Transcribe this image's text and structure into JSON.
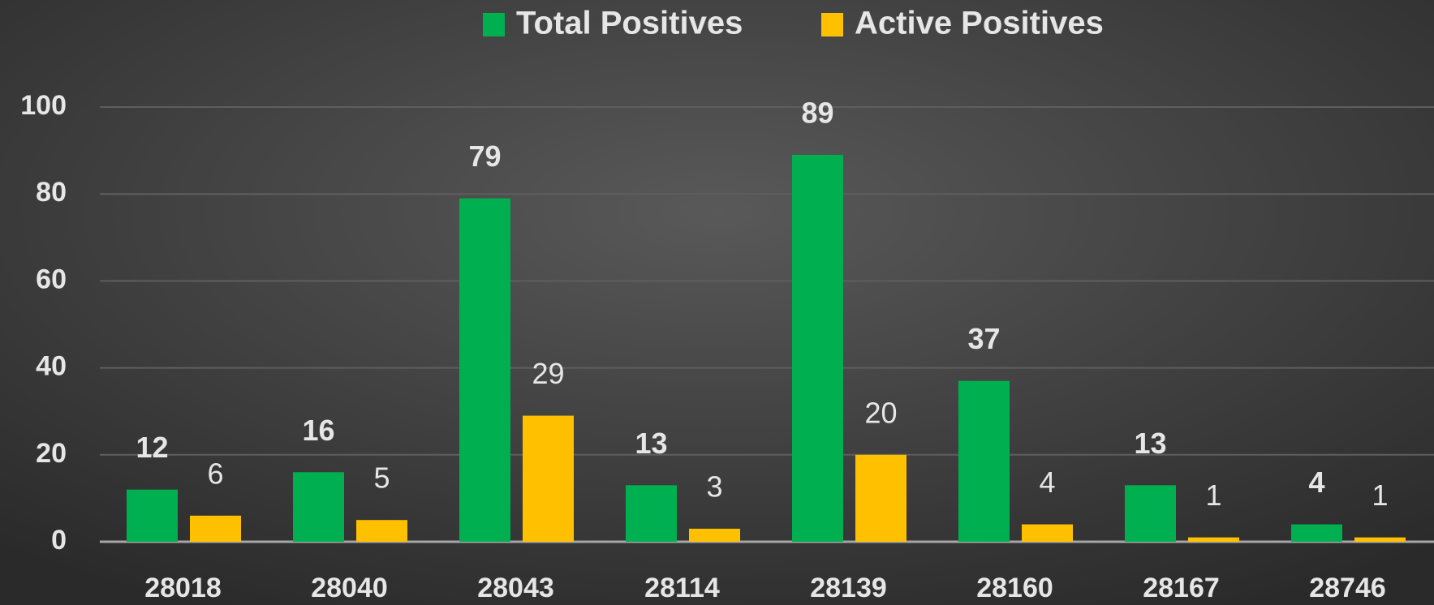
{
  "chart_data": {
    "type": "bar",
    "categories": [
      "28018",
      "28040",
      "28043",
      "28114",
      "28139",
      "28160",
      "28167",
      "28746"
    ],
    "series": [
      {
        "name": "Total Positives",
        "color": "#00b050",
        "values": [
          12,
          16,
          79,
          13,
          89,
          37,
          13,
          4
        ]
      },
      {
        "name": "Active Positives",
        "color": "#ffc000",
        "values": [
          6,
          5,
          29,
          3,
          20,
          4,
          1,
          1
        ]
      }
    ],
    "ylim": [
      0,
      100
    ],
    "yticks": [
      0,
      20,
      40,
      60,
      80,
      100
    ],
    "grid": true,
    "legend": "top"
  }
}
